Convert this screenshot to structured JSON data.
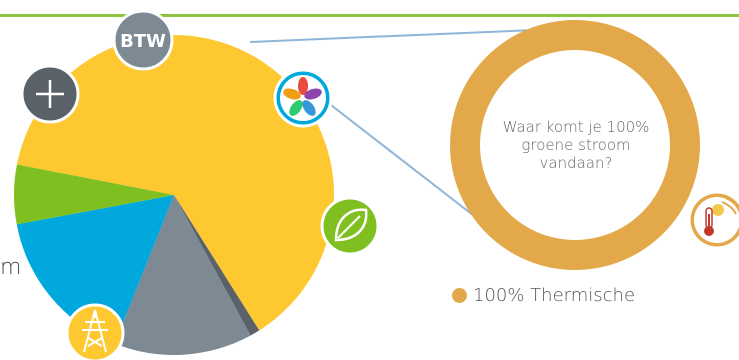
{
  "page": {
    "left_text_fragment": "m"
  },
  "icons": {
    "btw_label": "BTW",
    "plus_symbol": "+",
    "icon_names": [
      "btw-badge",
      "plus-icon",
      "star-flower-icon",
      "leaf-icon",
      "power-tower-icon",
      "sun-thermometer-icon"
    ]
  },
  "colors": {
    "top_rule": "#8cc63f",
    "pie_yellow": "#fdc830",
    "pie_grey": "#7d8a93",
    "pie_dark": "#5a6168",
    "pie_blue": "#00a8de",
    "pie_green": "#7fbf1f",
    "donut_orange": "#e3a84a",
    "connector": "#8fb6d8"
  },
  "chart_data": [
    {
      "type": "pie",
      "title": "",
      "values": [
        63,
        1,
        14,
        16,
        6
      ],
      "colors": [
        "#fdc830",
        "#5a6168",
        "#7d8a93",
        "#00a8de",
        "#7fbf1f"
      ],
      "start_angle_deg": 191,
      "legend": "none"
    },
    {
      "type": "pie",
      "variant": "donut",
      "center_text": "Waar komt je 100% groene stroom vandaan?",
      "categories": [
        "100% Thermische"
      ],
      "values": [
        100
      ],
      "colors": [
        "#e3a84a"
      ],
      "legend": "bottom"
    }
  ]
}
